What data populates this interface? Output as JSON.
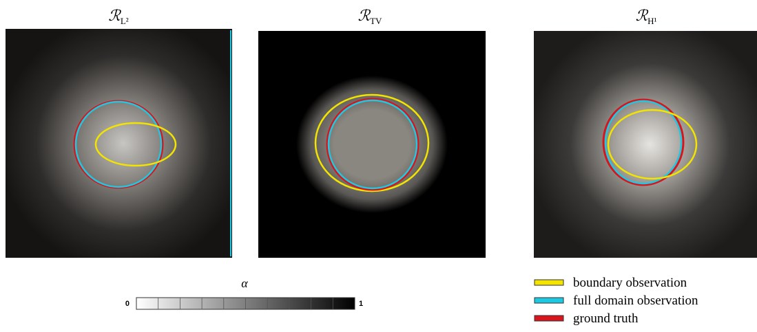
{
  "panels": [
    {
      "title": "ℛ",
      "subscript": "L²"
    },
    {
      "title": "ℛ",
      "subscript": "TV"
    },
    {
      "title": "ℛ",
      "subscript": "H¹"
    }
  ],
  "colorbar": {
    "label": "α",
    "ticks": [
      0,
      1
    ]
  },
  "legend": [
    {
      "name": "boundary observation",
      "color": "#f2e400"
    },
    {
      "name": "full domain observation",
      "color": "#1ec8e0"
    },
    {
      "name": "ground truth",
      "color": "#d8141c"
    }
  ]
}
